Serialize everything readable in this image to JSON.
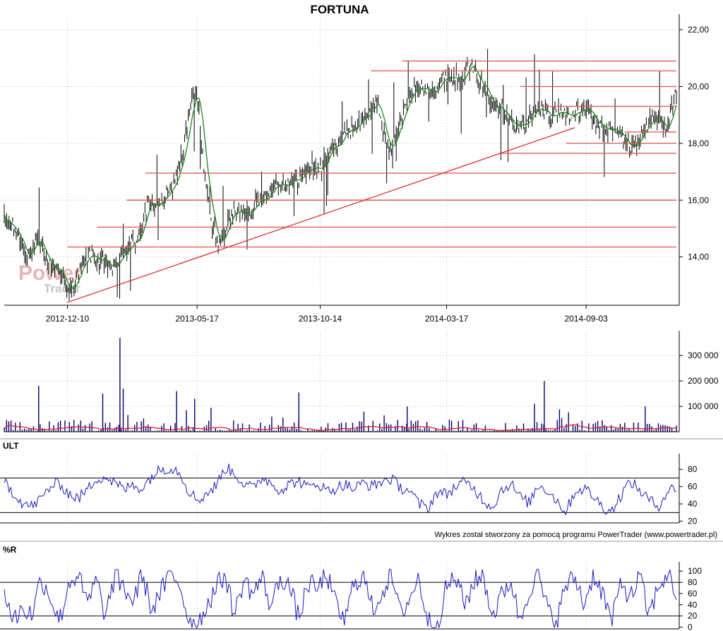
{
  "title": "FORTUNA",
  "credit": "Wykres został stworzony za pomocą programu PowerTrader (www.powertrader.pl)",
  "watermark": {
    "brand": "Power",
    "sub": "Trader"
  },
  "colors": {
    "candle": "#000000",
    "ma": "#1a8a1a",
    "support": "#e85c5c",
    "trend": "#dd2222",
    "volume": "#00006e",
    "volume_ma": "#e0202e",
    "oscillator": "#1c1cc0",
    "grid": "#b8b8b8"
  },
  "chart_data": [
    {
      "type": "candlestick",
      "title": "FORTUNA",
      "x_tick_labels": [
        "2012-12-10",
        "2013-05-17",
        "2013-10-14",
        "2014-03-17",
        "2014-09-03"
      ],
      "y_tick_labels": [
        "14,00",
        "16,00",
        "18,00",
        "20,00",
        "22,00"
      ],
      "ylim": [
        12.3,
        22.3
      ],
      "close_path": [
        [
          "2012-09-24",
          15.3
        ],
        [
          "2012-10-08",
          14.9
        ],
        [
          "2012-10-22",
          14.1
        ],
        [
          "2012-11-05",
          14.5
        ],
        [
          "2012-11-19",
          13.7
        ],
        [
          "2012-12-03",
          13.5
        ],
        [
          "2012-12-10",
          12.6
        ],
        [
          "2012-12-24",
          13.5
        ],
        [
          "2013-01-07",
          14.1
        ],
        [
          "2013-01-21",
          13.8
        ],
        [
          "2013-02-04",
          13.6
        ],
        [
          "2013-02-18",
          14.2
        ],
        [
          "2013-03-04",
          14.6
        ],
        [
          "2013-03-18",
          15.8
        ],
        [
          "2013-04-01",
          15.9
        ],
        [
          "2013-04-15",
          16.3
        ],
        [
          "2013-04-29",
          17.6
        ],
        [
          "2013-05-10",
          19.4
        ],
        [
          "2013-05-17",
          19.8
        ],
        [
          "2013-05-24",
          17.5
        ],
        [
          "2013-06-03",
          15.2
        ],
        [
          "2013-06-14",
          14.5
        ],
        [
          "2013-06-28",
          15.5
        ],
        [
          "2013-07-12",
          15.6
        ],
        [
          "2013-07-26",
          15.8
        ],
        [
          "2013-08-09",
          16.2
        ],
        [
          "2013-08-23",
          16.6
        ],
        [
          "2013-09-06",
          16.6
        ],
        [
          "2013-09-20",
          16.8
        ],
        [
          "2013-10-04",
          17.2
        ],
        [
          "2013-10-14",
          17.1
        ],
        [
          "2013-10-28",
          17.8
        ],
        [
          "2013-11-11",
          18.3
        ],
        [
          "2013-11-25",
          18.6
        ],
        [
          "2013-12-09",
          19.0
        ],
        [
          "2013-12-23",
          19.4
        ],
        [
          "2014-01-06",
          17.6
        ],
        [
          "2014-01-20",
          18.9
        ],
        [
          "2014-02-03",
          19.8
        ],
        [
          "2014-02-17",
          20.0
        ],
        [
          "2014-03-03",
          19.9
        ],
        [
          "2014-03-17",
          20.4
        ],
        [
          "2014-03-31",
          20.3
        ],
        [
          "2014-04-14",
          20.7
        ],
        [
          "2014-04-28",
          20.1
        ],
        [
          "2014-05-12",
          19.5
        ],
        [
          "2014-05-26",
          19.2
        ],
        [
          "2014-06-09",
          18.5
        ],
        [
          "2014-06-23",
          18.8
        ],
        [
          "2014-07-07",
          19.2
        ],
        [
          "2014-07-21",
          19.0
        ],
        [
          "2014-08-04",
          19.1
        ],
        [
          "2014-08-18",
          19.0
        ],
        [
          "2014-09-03",
          19.2
        ],
        [
          "2014-09-17",
          18.6
        ],
        [
          "2014-10-01",
          18.5
        ],
        [
          "2014-10-15",
          18.3
        ],
        [
          "2014-10-29",
          17.8
        ],
        [
          "2014-11-12",
          18.5
        ],
        [
          "2014-11-26",
          18.9
        ],
        [
          "2014-12-10",
          18.6
        ],
        [
          "2014-12-22",
          19.8
        ]
      ],
      "support_levels": [
        {
          "y": 20.9,
          "from": "2014-01-22",
          "to": "2014-12-22"
        },
        {
          "y": 20.55,
          "from": "2013-12-15",
          "to": "2014-12-22"
        },
        {
          "y": 20.0,
          "from": "2014-06-15",
          "to": "2014-12-22"
        },
        {
          "y": 19.3,
          "from": "2014-07-10",
          "to": "2014-12-22"
        },
        {
          "y": 18.4,
          "from": "2014-10-20",
          "to": "2014-12-22"
        },
        {
          "y": 18.0,
          "from": "2014-08-10",
          "to": "2014-12-22"
        },
        {
          "y": 17.65,
          "from": "2014-05-20",
          "to": "2014-12-22"
        },
        {
          "y": 16.95,
          "from": "2013-03-15",
          "to": "2014-12-22"
        },
        {
          "y": 16.0,
          "from": "2013-02-20",
          "to": "2014-12-22"
        },
        {
          "y": 15.05,
          "from": "2013-01-15",
          "to": "2014-12-22"
        },
        {
          "y": 14.35,
          "from": "2012-12-10",
          "to": "2014-12-22"
        }
      ],
      "trend_line": [
        [
          "2012-12-10",
          12.4
        ],
        [
          "2014-08-20",
          18.55
        ]
      ]
    },
    {
      "type": "bar",
      "title": "",
      "y_tick_labels": [
        "100 000",
        "200 000",
        "300 000"
      ],
      "ylim": [
        0,
        370000
      ],
      "spikes": [
        [
          "2012-11-05",
          180000
        ],
        [
          "2013-01-22",
          150000
        ],
        [
          "2013-02-12",
          370000
        ],
        [
          "2013-02-16",
          170000
        ],
        [
          "2013-04-22",
          160000
        ],
        [
          "2013-05-14",
          130000
        ],
        [
          "2013-09-18",
          155000
        ],
        [
          "2014-01-28",
          100000
        ],
        [
          "2014-07-02",
          110000
        ],
        [
          "2014-07-14",
          200000
        ],
        [
          "2014-11-14",
          100000
        ]
      ],
      "volume_ma_level": 15000
    },
    {
      "type": "line",
      "title": "ULT",
      "y_tick_labels": [
        "20",
        "40",
        "60",
        "80"
      ],
      "ylim": [
        18,
        90
      ],
      "thresholds": [
        30,
        70
      ],
      "values": [
        66,
        53,
        41,
        37,
        46,
        60,
        64,
        52,
        46,
        56,
        70,
        71,
        64,
        57,
        62,
        58,
        72,
        80,
        82,
        78,
        56,
        44,
        52,
        61,
        82,
        76,
        63,
        58,
        71,
        64,
        56,
        63,
        67,
        58,
        65,
        55,
        58,
        63,
        57,
        65,
        60,
        66,
        69,
        59,
        56,
        40,
        35,
        54,
        51,
        60,
        65,
        58,
        45,
        36,
        56,
        64,
        48,
        41,
        62,
        56,
        44,
        31,
        55,
        58,
        49,
        36,
        32,
        51,
        66,
        56,
        45,
        37,
        54,
        60
      ]
    },
    {
      "type": "line",
      "title": "%R",
      "y_tick_labels": [
        "0",
        "20",
        "40",
        "60",
        "80",
        "100"
      ],
      "ylim": [
        -3,
        104
      ],
      "thresholds": [
        20,
        80
      ],
      "values": [
        60,
        12,
        35,
        22,
        88,
        55,
        10,
        78,
        95,
        40,
        84,
        18,
        90,
        70,
        45,
        96,
        30,
        62,
        92,
        80,
        15,
        4,
        40,
        70,
        95,
        20,
        85,
        60,
        88,
        35,
        92,
        72,
        14,
        80,
        66,
        96,
        40,
        10,
        82,
        90,
        32,
        60,
        96,
        24,
        50,
        88,
        12,
        2,
        70,
        90,
        40,
        80,
        94,
        20,
        55,
        86,
        10,
        68,
        94,
        30,
        12,
        75,
        88,
        40,
        96,
        60,
        8,
        84,
        50,
        92,
        20,
        70,
        96,
        60
      ]
    }
  ]
}
